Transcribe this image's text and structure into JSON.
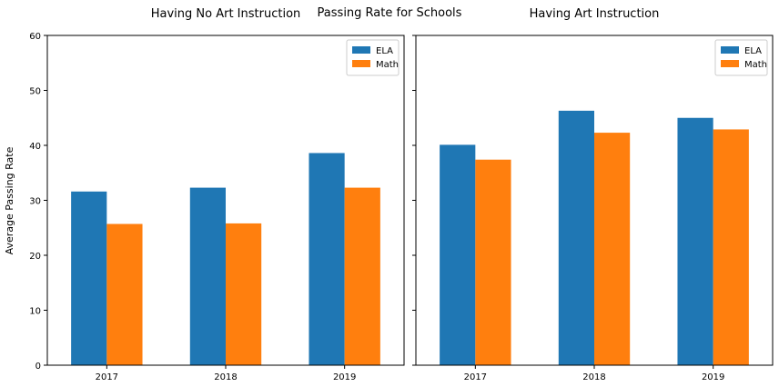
{
  "figure_title": "Passing Rate for Schools",
  "ylabel": "Average Passing Rate",
  "colors": {
    "ELA": "#1f77b4",
    "Math": "#ff7f0e"
  },
  "chart_data": [
    {
      "type": "bar",
      "title": "Having No Art Instruction",
      "categories": [
        "2017",
        "2018",
        "2019"
      ],
      "series": [
        {
          "name": "ELA",
          "values": [
            31.6,
            32.3,
            38.6
          ]
        },
        {
          "name": "Math",
          "values": [
            25.7,
            25.8,
            32.3
          ]
        }
      ],
      "ylabel": "Average Passing Rate",
      "ylim": [
        0,
        60
      ],
      "yticks": [
        "0",
        "10",
        "20",
        "30",
        "40",
        "50",
        "60"
      ],
      "legend": "top-right"
    },
    {
      "type": "bar",
      "title": "Having Art Instruction",
      "categories": [
        "2017",
        "2018",
        "2019"
      ],
      "series": [
        {
          "name": "ELA",
          "values": [
            40.1,
            46.3,
            45.0
          ]
        },
        {
          "name": "Math",
          "values": [
            37.4,
            42.3,
            42.9
          ]
        }
      ],
      "ylim": [
        0,
        60
      ],
      "legend": "top-right"
    }
  ]
}
